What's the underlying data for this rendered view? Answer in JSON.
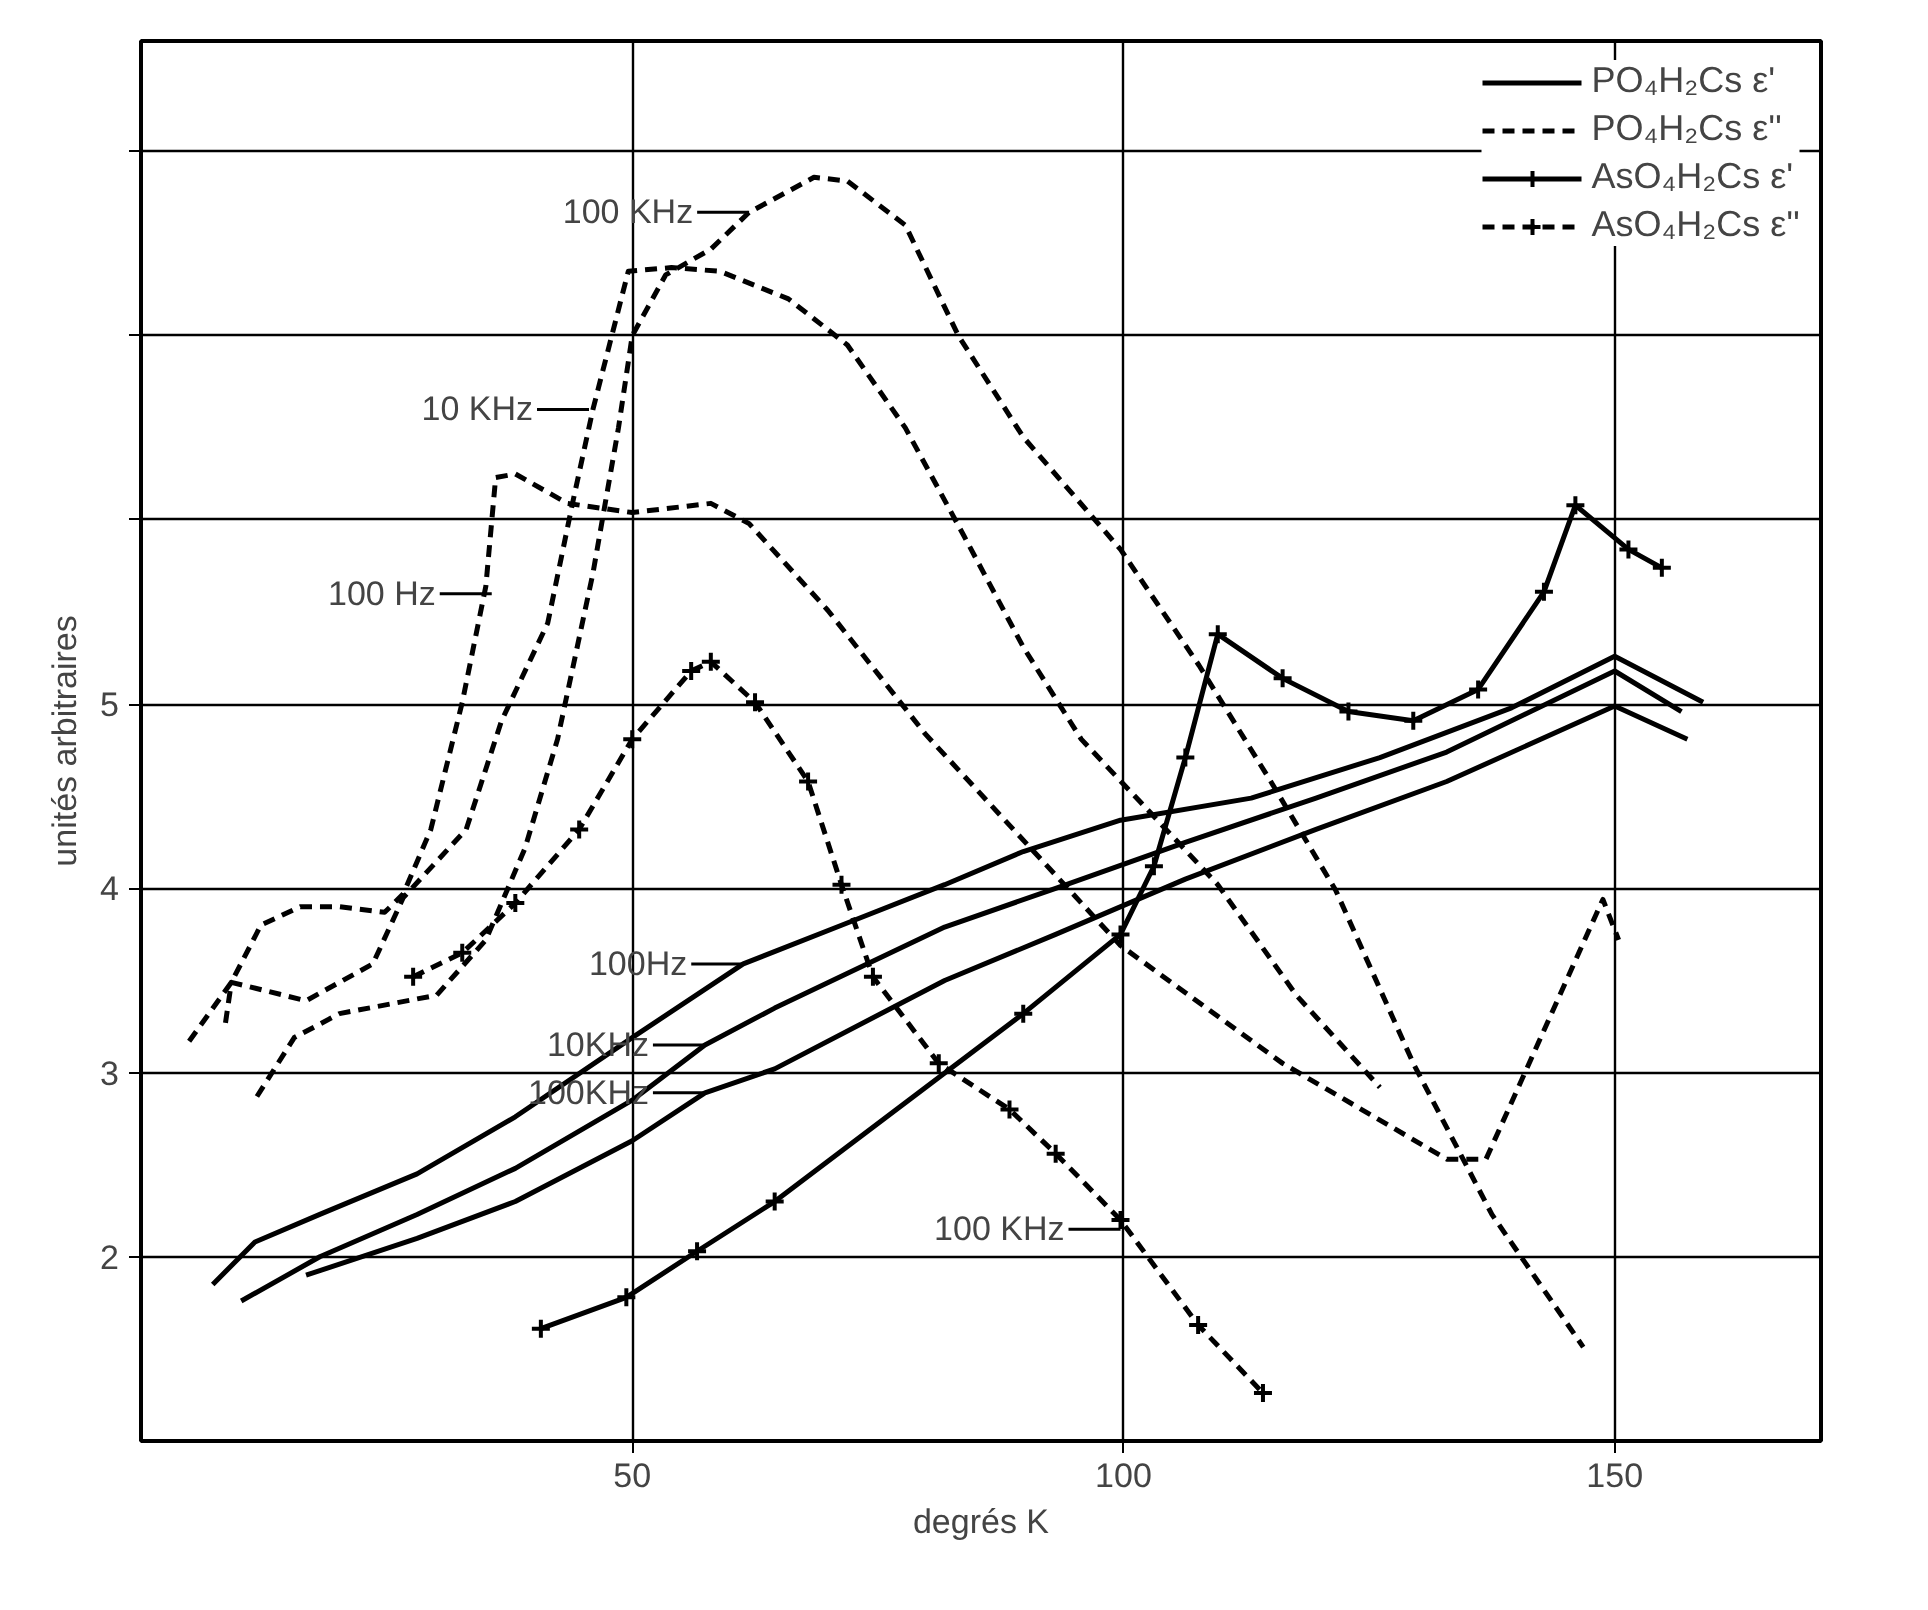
{
  "chart_data": {
    "type": "line",
    "xlabel": "degrés K",
    "ylabel": "unités arbitraires",
    "xlim": [
      0,
      171
    ],
    "ylim": [
      1,
      8.6
    ],
    "xticks": [
      50,
      100,
      150
    ],
    "yticks": [
      2,
      3,
      4,
      5,
      {
        "value": 6,
        "label": null
      },
      {
        "value": 7,
        "label": null
      },
      {
        "value": 8,
        "label": null
      }
    ],
    "grid": true,
    "legend": "top right",
    "series": [
      {
        "name": "PO₄H₂Cs ε'",
        "color": "#000000",
        "line_style": "solid",
        "marker": "none",
        "x": [
          7.3,
          11.6,
          18.2,
          28.1,
          38.1,
          50,
          61.3,
          71.3,
          81.8,
          89.8,
          99.7,
          113,
          126.1,
          139.5,
          150,
          159
        ],
        "values": [
          1.85,
          2.08,
          2.23,
          2.45,
          2.76,
          3.19,
          3.59,
          3.8,
          4.02,
          4.2,
          4.37,
          4.49,
          4.71,
          4.98,
          5.26,
          5.01
        ]
      },
      {
        "color": "#000000",
        "line_style": "solid",
        "marker": "none",
        "x": [
          10.2,
          18.2,
          28.1,
          38.1,
          50,
          57.4,
          64.5,
          81.8,
          93.1,
          106.3,
          119.6,
          132.9,
          150,
          156.8
        ],
        "values": [
          1.76,
          2.0,
          2.23,
          2.48,
          2.85,
          3.15,
          3.35,
          3.79,
          4.0,
          4.25,
          4.49,
          4.74,
          5.18,
          4.96
        ]
      },
      {
        "color": "#000000",
        "line_style": "solid",
        "marker": "none",
        "x": [
          16.8,
          28.1,
          38.1,
          50,
          57.4,
          64.5,
          81.8,
          93.1,
          106.3,
          119.6,
          132.9,
          150,
          157.4
        ],
        "values": [
          1.9,
          2.1,
          2.3,
          2.63,
          2.89,
          3.02,
          3.5,
          3.75,
          4.05,
          4.32,
          4.58,
          4.99,
          4.81
        ]
      },
      {
        "name": "PO₄H₂Cs ε''",
        "color": "#000000",
        "line_style": "dashed",
        "marker": "none",
        "x": [
          4.9,
          9.2,
          12.2,
          16.2,
          20.2,
          24.8,
          26.7,
          29.5,
          32.7,
          35.1,
          36.1,
          38.1,
          43.4,
          50,
          58,
          61.9,
          69.9,
          79.8,
          99.7,
          116.2,
          132.9,
          136.9,
          148.8,
          150.4
        ],
        "values": [
          3.17,
          3.49,
          3.8,
          3.9,
          3.9,
          3.87,
          3.97,
          4.32,
          5.01,
          5.64,
          6.23,
          6.25,
          6.09,
          6.04,
          6.09,
          5.98,
          5.51,
          4.84,
          3.69,
          3.05,
          2.53,
          2.53,
          3.94,
          3.72
        ]
      },
      {
        "color": "#000000",
        "line_style": "dashed",
        "marker": "none",
        "x": [
          8.6,
          9.2,
          16.8,
          23.6,
          26.7,
          33.1,
          36.7,
          41.4,
          44.0,
          46.0,
          49.6,
          54.0,
          58.9,
          65.9,
          71.9,
          77.8,
          83.8,
          89.8,
          95.7,
          101.7,
          109.6,
          117.6,
          126.1
        ],
        "values": [
          3.27,
          3.49,
          3.39,
          3.59,
          3.95,
          4.32,
          4.91,
          5.44,
          6.11,
          6.6,
          7.35,
          7.37,
          7.35,
          7.2,
          6.95,
          6.5,
          5.91,
          5.31,
          4.81,
          4.47,
          4.02,
          3.42,
          2.92
        ]
      },
      {
        "color": "#000000",
        "line_style": "dashed",
        "marker": "none",
        "x": [
          11.8,
          15.6,
          20.2,
          30.1,
          35.1,
          39.1,
          42.4,
          46.0,
          48.6,
          50,
          53.4,
          58,
          61.9,
          68.5,
          71.9,
          77.8,
          83.2,
          89.8,
          99.7,
          107.7,
          115,
          121.6,
          129.5,
          137.5,
          146.8
        ],
        "values": [
          2.87,
          3.19,
          3.32,
          3.42,
          3.72,
          4.22,
          4.81,
          5.71,
          6.5,
          7.0,
          7.33,
          7.47,
          7.67,
          7.86,
          7.84,
          7.6,
          7.0,
          6.45,
          5.84,
          5.21,
          4.58,
          3.99,
          3.05,
          2.23,
          1.51
        ]
      },
      {
        "name": "AsO₄H₂Cs ε'",
        "color": "#000000",
        "line_style": "solid",
        "marker": "cross",
        "x": [
          40.7,
          49.4,
          56.6,
          64.5,
          89.8,
          99.7,
          103.1,
          106.3,
          109.6,
          116.2,
          122.9,
          129.5,
          136.1,
          142.8,
          146.0,
          151.4,
          154.8
        ],
        "values": [
          1.61,
          1.78,
          2.03,
          2.3,
          3.32,
          3.75,
          4.12,
          4.71,
          5.38,
          5.14,
          4.96,
          4.91,
          5.08,
          5.61,
          6.08,
          5.84,
          5.74
        ]
      },
      {
        "name": "AsO₄H₂Cs ε''",
        "color": "#000000",
        "line_style": "dashed",
        "marker": "cross",
        "x": [
          27.7,
          32.7,
          38.1,
          44.6,
          50,
          56,
          58,
          62.5,
          67.9,
          71.3,
          74.5,
          81.2,
          88.4,
          93.1,
          99.7,
          107.6,
          114.2
        ],
        "values": [
          3.52,
          3.65,
          3.92,
          4.32,
          4.81,
          5.18,
          5.23,
          5.01,
          4.58,
          4.02,
          3.52,
          3.05,
          2.8,
          2.56,
          2.2,
          1.63,
          1.26
        ]
      }
    ],
    "annotations": [
      {
        "text": "100 KHz",
        "x": 61.9,
        "y": 7.67
      },
      {
        "text": "10 KHz",
        "x": 45.6,
        "y": 6.6
      },
      {
        "text": "100 Hz",
        "x": 35.7,
        "y": 5.6
      },
      {
        "text": "100Hz",
        "x": 61.3,
        "y": 3.59
      },
      {
        "text": "10KHz",
        "x": 57.4,
        "y": 3.15
      },
      {
        "text": "100KHz",
        "x": 57.4,
        "y": 2.89
      },
      {
        "text": "100 KHz",
        "x": 99.7,
        "y": 2.15
      }
    ]
  }
}
